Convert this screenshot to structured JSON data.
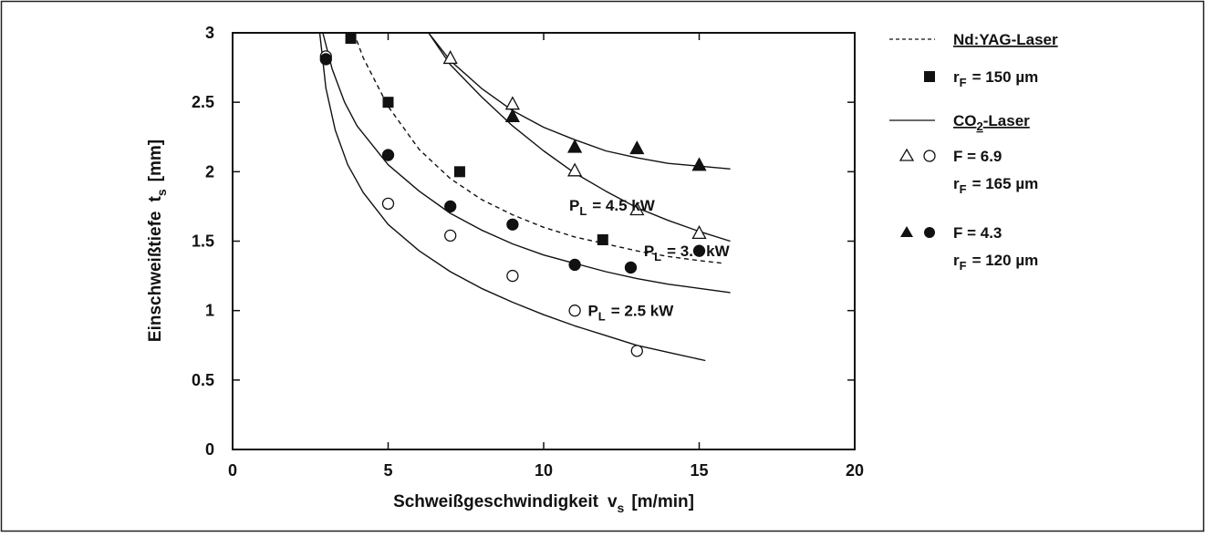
{
  "chart_data": {
    "type": "scatter",
    "xlabel": "Schweißgeschwindigkeit",
    "xlabel_symbol": "v",
    "xlabel_sub": "s",
    "xlabel_unit": "[m/min]",
    "ylabel": "Einschweißtiefe",
    "ylabel_symbol": "t",
    "ylabel_sub": "s",
    "ylabel_unit": "[mm]",
    "xlim": [
      0,
      20
    ],
    "ylim": [
      0,
      3
    ],
    "x_ticks": [
      0,
      5,
      10,
      15,
      20
    ],
    "y_ticks": [
      0,
      0.5,
      1,
      1.5,
      2,
      2.5,
      3
    ],
    "x_tick_labels": [
      "0",
      "5",
      "10",
      "15",
      "20"
    ],
    "y_tick_labels": [
      "0",
      "0.5",
      "1",
      "1.5",
      "2",
      "2.5",
      "3"
    ],
    "grid": false,
    "legend_position": "right",
    "series": [
      {
        "marker": "square-filled",
        "group": "Nd:YAG-Laser",
        "x": [
          3.8,
          5.0,
          7.3,
          11.9
        ],
        "y": [
          2.96,
          2.5,
          2.0,
          1.51
        ]
      },
      {
        "marker": "triangle-open",
        "group": "CO2 F=6.9",
        "x": [
          7.0,
          9.0,
          11.0,
          13.0,
          15.0
        ],
        "y": [
          2.82,
          2.49,
          2.01,
          1.73,
          1.56
        ]
      },
      {
        "marker": "circle-open",
        "group": "CO2 F=6.9",
        "x": [
          3.0,
          5.0,
          7.0,
          9.0,
          11.0,
          13.0
        ],
        "y": [
          2.83,
          1.77,
          1.54,
          1.25,
          1.0,
          0.71
        ]
      },
      {
        "marker": "triangle-filled",
        "group": "CO2 F=4.3",
        "x": [
          9.0,
          11.0,
          13.0,
          15.0
        ],
        "y": [
          2.4,
          2.18,
          2.17,
          2.05
        ]
      },
      {
        "marker": "circle-filled",
        "group": "CO2 F=4.3",
        "x": [
          3.0,
          5.0,
          7.0,
          9.0,
          11.0,
          12.8,
          15.0
        ],
        "y": [
          2.81,
          2.12,
          1.75,
          1.62,
          1.33,
          1.31,
          1.43
        ]
      }
    ],
    "curves": [
      {
        "style": "solid",
        "x": [
          2.8,
          3.0,
          3.3,
          3.7,
          4.2,
          5.0,
          6.0,
          7.0,
          8.0,
          9.0,
          10.0,
          11.0,
          12.0,
          13.0,
          14.0,
          15.2
        ],
        "y": [
          3.0,
          2.6,
          2.3,
          2.05,
          1.85,
          1.62,
          1.43,
          1.28,
          1.16,
          1.06,
          0.97,
          0.89,
          0.82,
          0.75,
          0.7,
          0.64
        ]
      },
      {
        "style": "solid",
        "x": [
          2.9,
          3.2,
          3.6,
          4.0,
          5.0,
          6.0,
          7.0,
          8.0,
          9.0,
          10.0,
          11.0,
          12.0,
          13.0,
          14.0,
          15.0,
          16.0
        ],
        "y": [
          3.0,
          2.74,
          2.5,
          2.33,
          2.05,
          1.86,
          1.7,
          1.58,
          1.48,
          1.4,
          1.34,
          1.28,
          1.23,
          1.19,
          1.16,
          1.13
        ]
      },
      {
        "style": "dashed",
        "x": [
          3.9,
          4.2,
          5.0,
          6.0,
          7.0,
          8.0,
          9.0,
          10.0,
          11.0,
          12.0,
          13.0,
          14.0,
          15.0,
          15.8
        ],
        "y": [
          3.0,
          2.82,
          2.47,
          2.16,
          1.95,
          1.8,
          1.69,
          1.6,
          1.53,
          1.48,
          1.43,
          1.39,
          1.36,
          1.34
        ]
      },
      {
        "style": "solid",
        "x": [
          6.3,
          7.0,
          8.0,
          9.0,
          10.0,
          11.0,
          12.0,
          13.0,
          14.0,
          15.0,
          16.0
        ],
        "y": [
          3.0,
          2.77,
          2.54,
          2.33,
          2.15,
          1.99,
          1.86,
          1.74,
          1.65,
          1.57,
          1.5
        ]
      },
      {
        "style": "solid",
        "x": [
          6.3,
          7.0,
          8.0,
          9.0,
          10.0,
          11.0,
          12.0,
          13.0,
          14.0,
          15.0,
          16.0
        ],
        "y": [
          3.0,
          2.8,
          2.6,
          2.44,
          2.32,
          2.23,
          2.15,
          2.1,
          2.06,
          2.04,
          2.02
        ]
      }
    ],
    "annotations": [
      {
        "symbol": "P",
        "sub": "L",
        "text": "= 4.5 kW",
        "x": 13.9,
        "y": 1.76
      },
      {
        "symbol": "P",
        "sub": "L",
        "text": "= 3.0 kW",
        "x": 16.3,
        "y": 1.43
      },
      {
        "symbol": "P",
        "sub": "L",
        "text": "= 2.5 kW",
        "x": 14.5,
        "y": 1.0
      }
    ],
    "legend": {
      "ndyag_title": "Nd:YAG-Laser",
      "ndyag_rf_symbol": "r",
      "ndyag_rf_sub": "F",
      "ndyag_rf_text": "= 150 µm",
      "co2_title_prefix": "CO",
      "co2_title_sub": "2",
      "co2_title_suffix": "-Laser",
      "group1_f": "F  = 6.9",
      "group1_rf_symbol": "r",
      "group1_rf_sub": "F",
      "group1_rf_text": "= 165 µm",
      "group2_f": "F  = 4.3",
      "group2_rf_symbol": "r",
      "group2_rf_sub": "F",
      "group2_rf_text": "= 120 µm"
    }
  }
}
